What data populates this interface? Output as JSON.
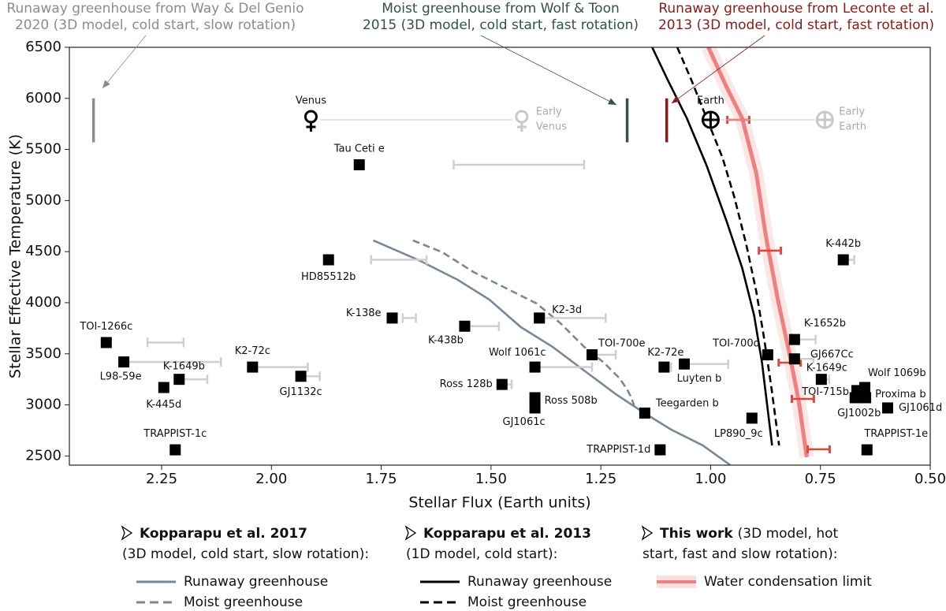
{
  "chart_data": {
    "type": "scatter",
    "x_label": "Stellar Flux (Earth units)",
    "y_label": "Stellar Effective Temperature (K)",
    "xlim": [
      2.46,
      0.5
    ],
    "ylim": [
      2410,
      6500
    ],
    "xticks": [
      2.25,
      {
        "value": 2,
        "label": "2.00"
      },
      1.75,
      {
        "value": 1.5,
        "label": "1.50"
      },
      1.25,
      {
        "value": 1,
        "label": "1.00"
      },
      0.75,
      {
        "value": 0.5,
        "label": "0.50"
      }
    ],
    "yticks": [
      2500,
      3000,
      3500,
      4000,
      4500,
      5000,
      5500,
      6000,
      6500
    ],
    "planets": [
      {
        "name": "Tau Ceti e",
        "x": 1.8,
        "y": 5350,
        "range": [
          1.585,
          1.288
        ]
      },
      {
        "name": "HD85512b",
        "x": 1.87,
        "y": 4420,
        "range": [
          1.773,
          1.647
        ]
      },
      {
        "name": "K-138e",
        "x": 1.725,
        "y": 3850,
        "range": [
          1.701,
          1.671
        ]
      },
      {
        "name": "K-438b",
        "x": 1.56,
        "y": 3770,
        "range": [
          1.549,
          1.482
        ]
      },
      {
        "name": "K2-3d",
        "x": 1.39,
        "y": 3850,
        "range": [
          1.378,
          1.239
        ]
      },
      {
        "name": "TOI-700e",
        "x": 1.27,
        "y": 3490,
        "range": [
          1.27,
          1.216
        ]
      },
      {
        "name": "Wolf 1061c",
        "x": 1.4,
        "y": 3370,
        "range": [
          1.396,
          1.27
        ]
      },
      {
        "name": "Ross 128b",
        "x": 1.475,
        "y": 3200,
        "range": [
          1.468,
          1.453
        ]
      },
      {
        "name": "Ross 508b",
        "x": 1.4,
        "y": 3070
      },
      {
        "name": "GJ1061c",
        "x": 1.4,
        "y": 2970
      },
      {
        "name": "Teegarden b",
        "x": 1.15,
        "y": 2920
      },
      {
        "name": "TRAPPIST-1d",
        "x": 1.115,
        "y": 2560
      },
      {
        "name": "K2-72e",
        "x": 1.106,
        "y": 3370,
        "range": [
          1.099,
          1.09
        ]
      },
      {
        "name": "Luyten b",
        "x": 1.06,
        "y": 3400,
        "range": [
          1.054,
          0.96
        ]
      },
      {
        "name": "TOI-700d",
        "x": 0.87,
        "y": 3490
      },
      {
        "name": "LP890_9c",
        "x": 0.906,
        "y": 2870
      },
      {
        "name": "K-1652b",
        "x": 0.809,
        "y": 3640,
        "range": [
          0.809,
          0.761
        ]
      },
      {
        "name": "GJ667Cc",
        "x": 0.809,
        "y": 3450,
        "range": [
          0.802,
          0.766
        ]
      },
      {
        "name": "K-1649c",
        "x": 0.748,
        "y": 3250,
        "range": [
          0.748,
          0.73
        ]
      },
      {
        "name": "TOI-715b",
        "x": 0.667,
        "y": 3140
      },
      {
        "name": "Wolf 1069b",
        "x": 0.649,
        "y": 3170
      },
      {
        "name": "Proxima b",
        "x": 0.647,
        "y": 3070
      },
      {
        "name": "GJ1002b",
        "x": 0.671,
        "y": 3070
      },
      {
        "name": "GJ1061d",
        "x": 0.597,
        "y": 2970
      },
      {
        "name": "TRAPPIST-1e",
        "x": 0.644,
        "y": 2560
      },
      {
        "name": "K-442b",
        "x": 0.698,
        "y": 4420,
        "range": [
          0.694,
          0.673
        ]
      },
      {
        "name": "TOI-1266c",
        "x": 2.376,
        "y": 3610,
        "range": [
          2.282,
          2.2
        ]
      },
      {
        "name": "L98-59e",
        "x": 2.336,
        "y": 3420,
        "range": [
          2.331,
          2.115
        ]
      },
      {
        "name": "K-1649b",
        "x": 2.21,
        "y": 3250,
        "range": [
          2.201,
          2.146
        ]
      },
      {
        "name": "K-445d",
        "x": 2.245,
        "y": 3170
      },
      {
        "name": "K2-72c",
        "x": 2.043,
        "y": 3370,
        "range": [
          2.034,
          1.917
        ]
      },
      {
        "name": "GJ1132c",
        "x": 1.933,
        "y": 3280,
        "range": [
          1.926,
          1.89
        ]
      },
      {
        "name": "TRAPPIST-1c",
        "x": 2.219,
        "y": 2560
      }
    ],
    "bodies": [
      {
        "name": "Venus",
        "x": 1.91,
        "y": 5790,
        "early": {
          "name_lines": [
            "Early",
            "Venus"
          ],
          "x": 1.43,
          "y": 5790
        }
      },
      {
        "name": "Earth",
        "x": 1.0,
        "y": 5790,
        "early": {
          "name_lines": [
            "Early",
            "Earth"
          ],
          "x": 0.74,
          "y": 5790
        }
      }
    ],
    "annotations": [
      {
        "lines": [
          "Runaway greenhouse from Way & Del Genio",
          "2020 (3D model, cold start, slow rotation)"
        ],
        "color": "#8c8c8c",
        "x": 2.405,
        "y": [
          5570,
          6000
        ]
      },
      {
        "lines": [
          "Moist greenhouse from Wolf & Toon",
          "2015 (3D model, cold start, fast rotation)"
        ],
        "color": "#34504f",
        "x": 1.19,
        "y": [
          5570,
          6000
        ]
      },
      {
        "lines": [
          "Runaway greenhouse from Leconte et al.",
          "2013 (3D model, cold start, fast rotation)"
        ],
        "color": "#8b1a1a",
        "x": 1.1,
        "y": [
          5570,
          6000
        ]
      }
    ],
    "groups": [
      {
        "title": "Kopparapu et al. 2017",
        "subtitle_lines": [
          "(3D model, cold start, slow rotation):"
        ],
        "curves": [
          {
            "name": "Runaway greenhouse",
            "color": "#778899",
            "style": "solid",
            "x": [
              1.768,
              1.665,
              1.576,
              1.504,
              1.432,
              1.36,
              1.288,
              1.216,
              1.151,
              1.09,
              1.018,
              0.955
            ],
            "y": [
              4610,
              4417,
              4224,
              4031,
              3761,
              3568,
              3336,
              3105,
              2920,
              2758,
              2604,
              2410
            ]
          },
          {
            "name": "Moist greenhouse",
            "color": "#778899",
            "style": "dashed",
            "x": [
              1.678,
              1.611,
              1.54,
              1.468,
              1.396,
              1.342,
              1.288,
              1.243,
              1.207,
              1.189,
              1.18,
              1.171
            ],
            "y": [
              4610,
              4494,
              4301,
              4146,
              3992,
              3799,
              3568,
              3413,
              3259,
              3143,
              3066,
              2950
            ]
          }
        ]
      },
      {
        "title": "Kopparapu et al. 2013",
        "subtitle_lines": [
          "(1D model, cold start):"
        ],
        "curves": [
          {
            "name": "Runaway greenhouse",
            "color": "#000000",
            "style": "solid",
            "x": [
              1.133,
              1.099,
              1.054,
              1.009,
              0.964,
              0.928,
              0.901,
              0.883,
              0.87,
              0.86
            ],
            "y": [
              6500,
              6191,
              5805,
              5342,
              4802,
              4339,
              3876,
              3413,
              2950,
              2603
            ]
          },
          {
            "name": "Moist greenhouse",
            "color": "#000000",
            "style": "dashed",
            "x": [
              1.076,
              1.045,
              1.009,
              0.973,
              0.946,
              0.919,
              0.896,
              0.878,
              0.862,
              0.844
            ],
            "y": [
              6500,
              6191,
              5805,
              5420,
              5034,
              4571,
              4108,
              3645,
              3182,
              2603
            ]
          }
        ]
      },
      {
        "title": "This work",
        "title_note": "(3D model, hot",
        "subtitle_lines": [
          "start, fast and slow rotation):"
        ],
        "curves": [
          {
            "name": "Water condensation limit",
            "color": "#f08080",
            "style": "band",
            "x": [
              1.005,
              0.964,
              0.928,
              0.896,
              0.874,
              0.847,
              0.82,
              0.799,
              0.781
            ],
            "y": [
              6500,
              6114,
              5805,
              5265,
              4648,
              4031,
              3491,
              3028,
              2488
            ],
            "points": {
              "x": [
                0.937,
                0.865,
                0.82,
                0.79,
                0.754
              ],
              "y": [
                5790,
                4510,
                3413,
                3058,
                2565
              ],
              "xerr": [
                0.025,
                0.025,
                0.025,
                0.025,
                0.025
              ]
            }
          }
        ]
      }
    ]
  }
}
